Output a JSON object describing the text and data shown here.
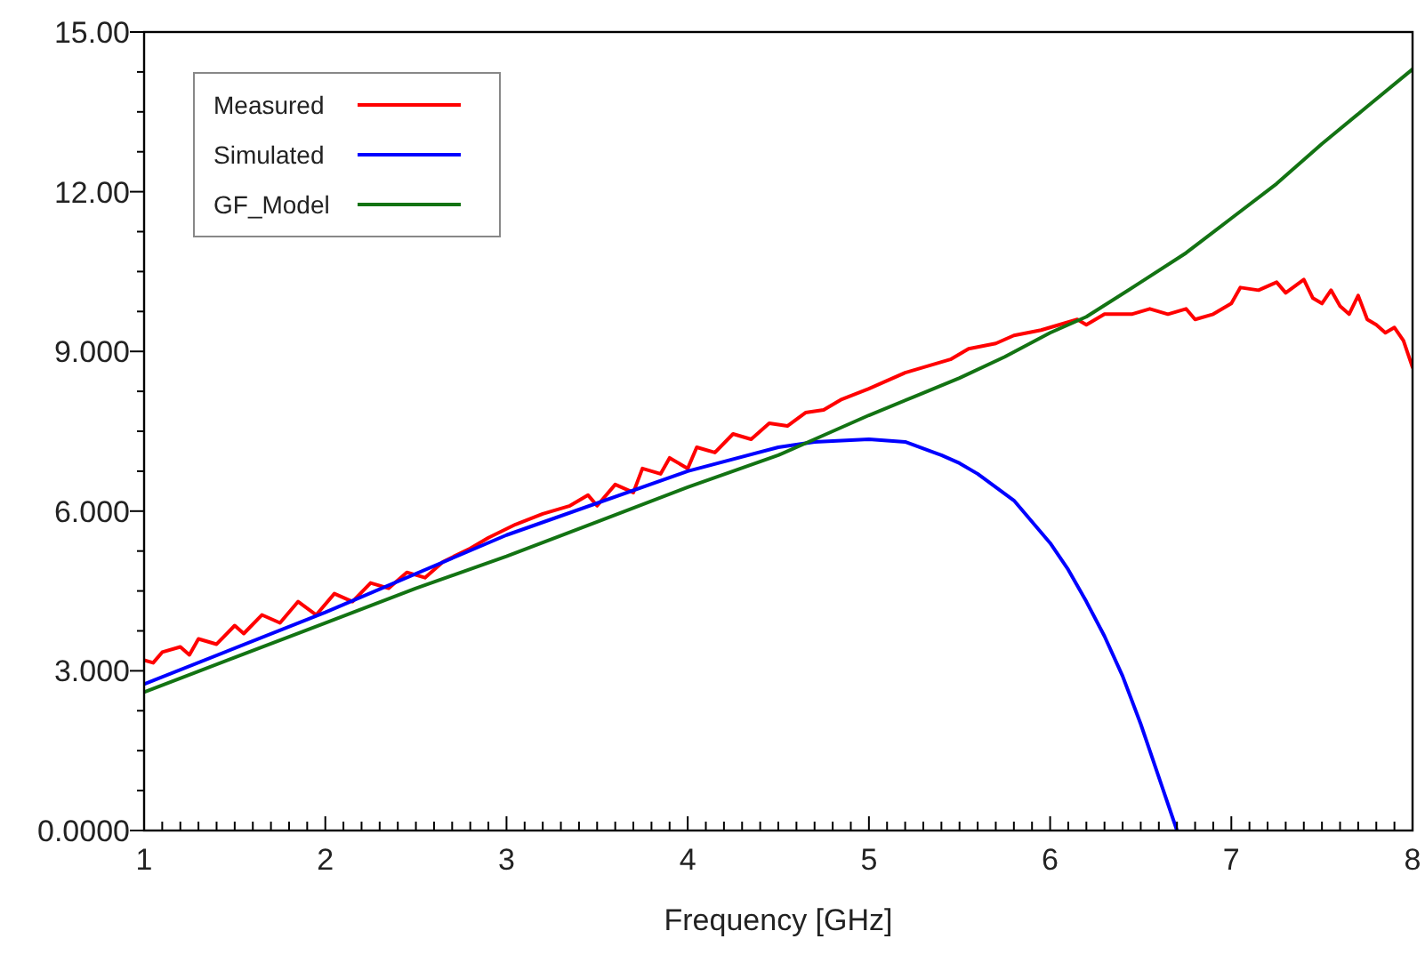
{
  "chart_data": {
    "type": "line",
    "xlabel": "Frequency [GHz]",
    "xlim": [
      1,
      8
    ],
    "ylim": [
      0,
      15
    ],
    "xticks": [
      1,
      2,
      3,
      4,
      5,
      6,
      7,
      8,
      {
        "value": 1.1,
        "label": null
      },
      {
        "value": 1.2,
        "label": null
      },
      {
        "value": 1.3,
        "label": null
      },
      {
        "value": 1.4,
        "label": null
      },
      {
        "value": 1.5,
        "label": null
      },
      {
        "value": 1.6,
        "label": null
      },
      {
        "value": 1.7,
        "label": null
      },
      {
        "value": 1.8,
        "label": null
      },
      {
        "value": 1.9,
        "label": null
      },
      {
        "value": 2.1,
        "label": null
      },
      {
        "value": 2.2,
        "label": null
      },
      {
        "value": 2.3,
        "label": null
      },
      {
        "value": 2.4,
        "label": null
      },
      {
        "value": 2.5,
        "label": null
      },
      {
        "value": 2.6,
        "label": null
      },
      {
        "value": 2.7,
        "label": null
      },
      {
        "value": 2.8,
        "label": null
      },
      {
        "value": 2.9,
        "label": null
      },
      {
        "value": 3.1,
        "label": null
      },
      {
        "value": 3.2,
        "label": null
      },
      {
        "value": 3.3,
        "label": null
      },
      {
        "value": 3.4,
        "label": null
      },
      {
        "value": 3.5,
        "label": null
      },
      {
        "value": 3.6,
        "label": null
      },
      {
        "value": 3.7,
        "label": null
      },
      {
        "value": 3.8,
        "label": null
      },
      {
        "value": 3.9,
        "label": null
      },
      {
        "value": 4.1,
        "label": null
      },
      {
        "value": 4.2,
        "label": null
      },
      {
        "value": 4.3,
        "label": null
      },
      {
        "value": 4.4,
        "label": null
      },
      {
        "value": 4.5,
        "label": null
      },
      {
        "value": 4.6,
        "label": null
      },
      {
        "value": 4.7,
        "label": null
      },
      {
        "value": 4.8,
        "label": null
      },
      {
        "value": 4.9,
        "label": null
      },
      {
        "value": 5.1,
        "label": null
      },
      {
        "value": 5.2,
        "label": null
      },
      {
        "value": 5.3,
        "label": null
      },
      {
        "value": 5.4,
        "label": null
      },
      {
        "value": 5.5,
        "label": null
      },
      {
        "value": 5.6,
        "label": null
      },
      {
        "value": 5.7,
        "label": null
      },
      {
        "value": 5.8,
        "label": null
      },
      {
        "value": 5.9,
        "label": null
      },
      {
        "value": 6.1,
        "label": null
      },
      {
        "value": 6.2,
        "label": null
      },
      {
        "value": 6.3,
        "label": null
      },
      {
        "value": 6.4,
        "label": null
      },
      {
        "value": 6.5,
        "label": null
      },
      {
        "value": 6.6,
        "label": null
      },
      {
        "value": 6.7,
        "label": null
      },
      {
        "value": 6.8,
        "label": null
      },
      {
        "value": 6.9,
        "label": null
      },
      {
        "value": 7.1,
        "label": null
      },
      {
        "value": 7.2,
        "label": null
      },
      {
        "value": 7.3,
        "label": null
      },
      {
        "value": 7.4,
        "label": null
      },
      {
        "value": 7.5,
        "label": null
      },
      {
        "value": 7.6,
        "label": null
      },
      {
        "value": 7.7,
        "label": null
      },
      {
        "value": 7.8,
        "label": null
      },
      {
        "value": 7.9,
        "label": null
      }
    ],
    "yticks": [
      {
        "value": 0,
        "label": "0.0000"
      },
      {
        "value": 3,
        "label": "3.000"
      },
      {
        "value": 6,
        "label": "6.000"
      },
      {
        "value": 9,
        "label": "9.000"
      },
      {
        "value": 12,
        "label": "12.00"
      },
      {
        "value": 15,
        "label": "15.00"
      },
      {
        "value": 0.75,
        "label": null
      },
      {
        "value": 1.5,
        "label": null
      },
      {
        "value": 2.25,
        "label": null
      },
      {
        "value": 3.75,
        "label": null
      },
      {
        "value": 4.5,
        "label": null
      },
      {
        "value": 5.25,
        "label": null
      },
      {
        "value": 6.75,
        "label": null
      },
      {
        "value": 7.5,
        "label": null
      },
      {
        "value": 8.25,
        "label": null
      },
      {
        "value": 9.75,
        "label": null
      },
      {
        "value": 10.5,
        "label": null
      },
      {
        "value": 11.25,
        "label": null
      },
      {
        "value": 12.75,
        "label": null
      },
      {
        "value": 13.5,
        "label": null
      },
      {
        "value": 14.25,
        "label": null
      }
    ],
    "grid": false,
    "legend": "top left",
    "line_style": "solid",
    "marker": "none",
    "series": [
      {
        "name": "Measured",
        "color": "#ff0000",
        "x": [
          1,
          1.05,
          1.1,
          1.2,
          1.25,
          1.3,
          1.4,
          1.5,
          1.55,
          1.65,
          1.75,
          1.85,
          1.95,
          2.05,
          2.15,
          2.25,
          2.35,
          2.45,
          2.55,
          2.65,
          2.8,
          2.9,
          3.05,
          3.2,
          3.35,
          3.45,
          3.5,
          3.6,
          3.7,
          3.75,
          3.85,
          3.9,
          4,
          4.05,
          4.15,
          4.25,
          4.35,
          4.45,
          4.55,
          4.65,
          4.75,
          4.85,
          5,
          5.1,
          5.2,
          5.35,
          5.45,
          5.55,
          5.7,
          5.8,
          5.95,
          6.05,
          6.15,
          6.2,
          6.3,
          6.45,
          6.55,
          6.65,
          6.75,
          6.8,
          6.9,
          7,
          7.05,
          7.15,
          7.25,
          7.3,
          7.4,
          7.45,
          7.5,
          7.55,
          7.6,
          7.65,
          7.7,
          7.75,
          7.8,
          7.85,
          7.9,
          7.95,
          8
        ],
        "values": [
          3.2,
          3.15,
          3.35,
          3.45,
          3.3,
          3.6,
          3.5,
          3.85,
          3.7,
          4.05,
          3.9,
          4.3,
          4.05,
          4.45,
          4.3,
          4.65,
          4.55,
          4.85,
          4.75,
          5.05,
          5.3,
          5.5,
          5.75,
          5.95,
          6.1,
          6.3,
          6.1,
          6.5,
          6.35,
          6.8,
          6.7,
          7,
          6.8,
          7.2,
          7.1,
          7.45,
          7.35,
          7.65,
          7.6,
          7.85,
          7.9,
          8.1,
          8.3,
          8.45,
          8.6,
          8.75,
          8.85,
          9.05,
          9.15,
          9.3,
          9.4,
          9.5,
          9.6,
          9.5,
          9.7,
          9.7,
          9.8,
          9.7,
          9.8,
          9.6,
          9.7,
          9.9,
          10.2,
          10.15,
          10.3,
          10.1,
          10.35,
          10,
          9.9,
          10.15,
          9.85,
          9.7,
          10.05,
          9.6,
          9.5,
          9.35,
          9.45,
          9.2,
          8.7
        ]
      },
      {
        "name": "Simulated",
        "color": "#0000ff",
        "x": [
          1,
          2,
          3,
          4,
          4.5,
          4.7,
          5,
          5.2,
          5.4,
          5.5,
          5.6,
          5.8,
          6,
          6.1,
          6.2,
          6.3,
          6.4,
          6.5,
          6.55,
          6.6,
          6.7
        ],
        "values": [
          2.75,
          4.1,
          5.55,
          6.75,
          7.2,
          7.3,
          7.35,
          7.3,
          7.05,
          6.9,
          6.7,
          6.2,
          5.4,
          4.9,
          4.3,
          3.65,
          2.9,
          2,
          1.5,
          1,
          0
        ]
      },
      {
        "name": "GF_Model",
        "color": "#137313",
        "x": [
          1,
          1.5,
          2,
          2.5,
          3,
          3.5,
          4,
          4.5,
          4.7,
          5,
          5.25,
          5.5,
          5.75,
          6,
          6.2,
          6.5,
          6.75,
          7,
          7.25,
          7.5,
          7.75,
          8
        ],
        "values": [
          2.6,
          3.25,
          3.9,
          4.55,
          5.15,
          5.8,
          6.45,
          7.05,
          7.35,
          7.8,
          8.15,
          8.5,
          8.9,
          9.35,
          9.65,
          10.3,
          10.85,
          11.5,
          12.15,
          12.9,
          13.6,
          14.3
        ]
      }
    ]
  }
}
